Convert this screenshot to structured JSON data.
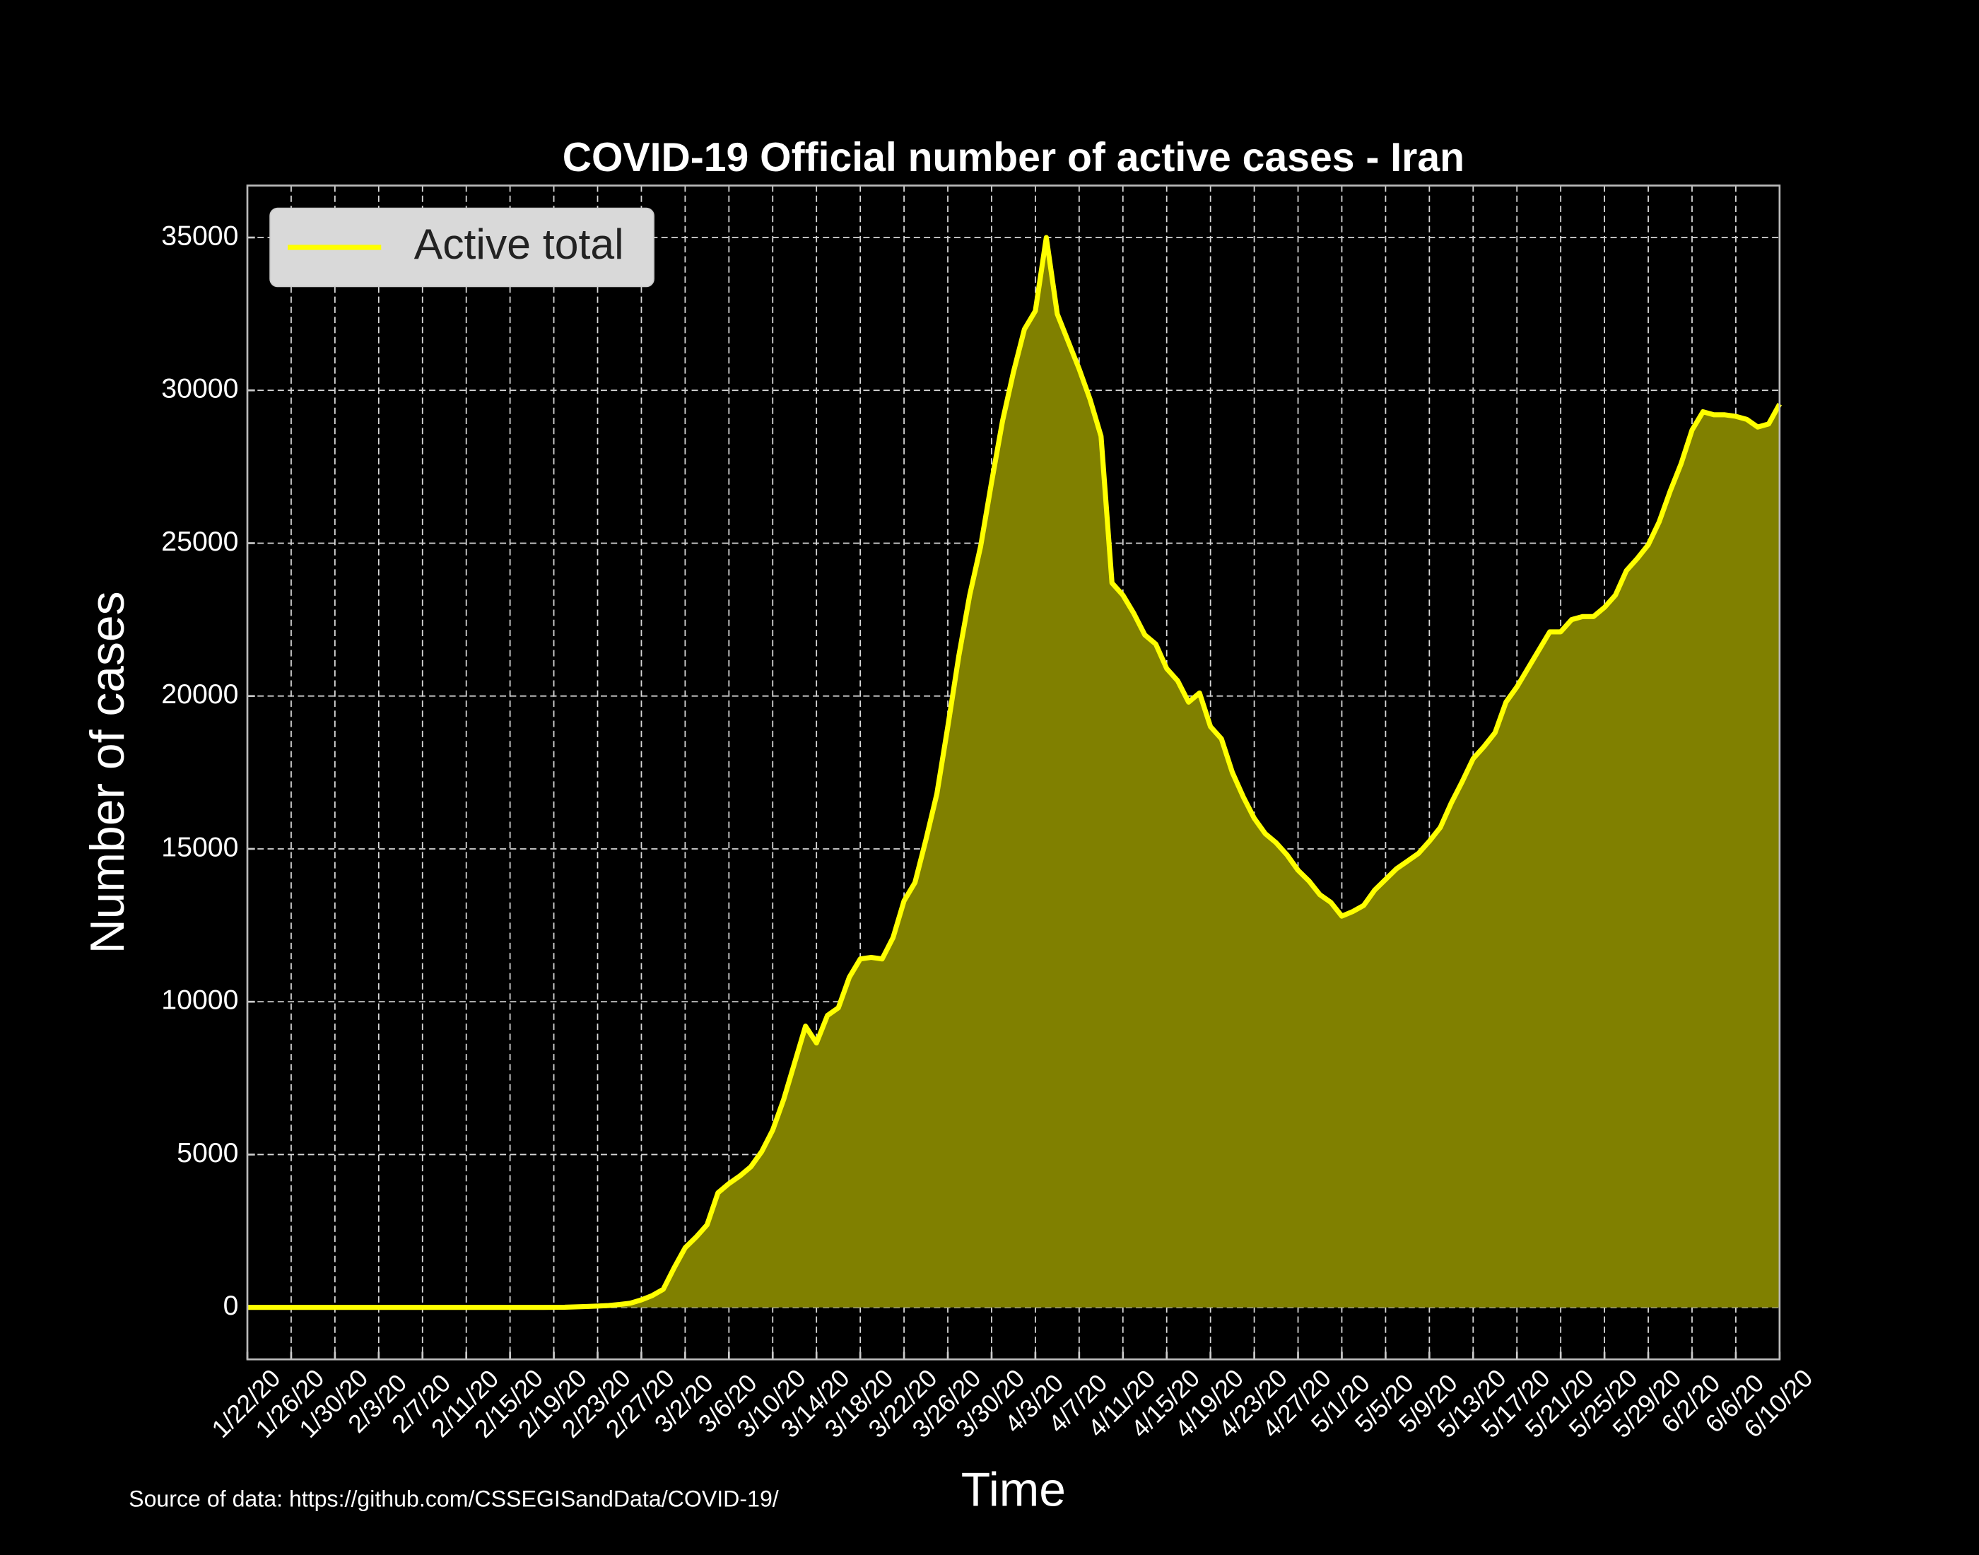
{
  "chart_data": {
    "type": "line",
    "title": "COVID-19 Official number of active cases - Iran",
    "x_label": "Time",
    "y_label": "Number of cases",
    "annotation": "Source of data: https://github.com/CSSEGISandData/COVID-19/",
    "x": [
      "1/22/20",
      "1/23/20",
      "1/24/20",
      "1/25/20",
      "1/26/20",
      "1/27/20",
      "1/28/20",
      "1/29/20",
      "1/30/20",
      "1/31/20",
      "2/1/20",
      "2/2/20",
      "2/3/20",
      "2/4/20",
      "2/5/20",
      "2/6/20",
      "2/7/20",
      "2/8/20",
      "2/9/20",
      "2/10/20",
      "2/11/20",
      "2/12/20",
      "2/13/20",
      "2/14/20",
      "2/15/20",
      "2/16/20",
      "2/17/20",
      "2/18/20",
      "2/19/20",
      "2/20/20",
      "2/21/20",
      "2/22/20",
      "2/23/20",
      "2/24/20",
      "2/25/20",
      "2/26/20",
      "2/27/20",
      "2/28/20",
      "2/29/20",
      "3/1/20",
      "3/2/20",
      "3/3/20",
      "3/4/20",
      "3/5/20",
      "3/6/20",
      "3/7/20",
      "3/8/20",
      "3/9/20",
      "3/10/20",
      "3/11/20",
      "3/12/20",
      "3/13/20",
      "3/14/20",
      "3/15/20",
      "3/16/20",
      "3/17/20",
      "3/18/20",
      "3/19/20",
      "3/20/20",
      "3/21/20",
      "3/22/20",
      "3/23/20",
      "3/24/20",
      "3/25/20",
      "3/26/20",
      "3/27/20",
      "3/28/20",
      "3/29/20",
      "3/30/20",
      "3/31/20",
      "4/1/20",
      "4/2/20",
      "4/3/20",
      "4/4/20",
      "4/5/20",
      "4/6/20",
      "4/7/20",
      "4/8/20",
      "4/9/20",
      "4/10/20",
      "4/11/20",
      "4/12/20",
      "4/13/20",
      "4/14/20",
      "4/15/20",
      "4/16/20",
      "4/17/20",
      "4/18/20",
      "4/19/20",
      "4/20/20",
      "4/21/20",
      "4/22/20",
      "4/23/20",
      "4/24/20",
      "4/25/20",
      "4/26/20",
      "4/27/20",
      "4/28/20",
      "4/29/20",
      "4/30/20",
      "5/1/20",
      "5/2/20",
      "5/3/20",
      "5/4/20",
      "5/5/20",
      "5/6/20",
      "5/7/20",
      "5/8/20",
      "5/9/20",
      "5/10/20",
      "5/11/20",
      "5/12/20",
      "5/13/20",
      "5/14/20",
      "5/15/20",
      "5/16/20",
      "5/17/20",
      "5/18/20",
      "5/19/20",
      "5/20/20",
      "5/21/20",
      "5/22/20",
      "5/23/20",
      "5/24/20",
      "5/25/20",
      "5/26/20",
      "5/27/20",
      "5/28/20",
      "5/29/20",
      "5/30/20",
      "5/31/20",
      "6/1/20",
      "6/2/20",
      "6/3/20",
      "6/4/20",
      "6/5/20",
      "6/6/20",
      "6/7/20",
      "6/8/20",
      "6/9/20",
      "6/10/20"
    ],
    "series": [
      {
        "name": "Active total",
        "color": "#ffff00",
        "fill_color": "#808000",
        "values": [
          0,
          0,
          0,
          0,
          0,
          0,
          0,
          0,
          0,
          0,
          0,
          0,
          0,
          0,
          0,
          0,
          0,
          0,
          0,
          0,
          0,
          0,
          0,
          0,
          0,
          0,
          0,
          0,
          2,
          5,
          18,
          28,
          43,
          61,
          95,
          139,
          245,
          388,
          593,
          1300,
          1950,
          2300,
          2700,
          3750,
          4050,
          4300,
          4600,
          5100,
          5800,
          6800,
          8000,
          9200,
          8650,
          9550,
          9800,
          10800,
          11400,
          11450,
          11400,
          12100,
          13300,
          13900,
          15300,
          16800,
          19000,
          21300,
          23300,
          24900,
          27000,
          29000,
          30600,
          32000,
          32600,
          35000,
          32500,
          31600,
          30700,
          29700,
          28500,
          23700,
          23300,
          22700,
          22000,
          21700,
          20900,
          20500,
          19800,
          20100,
          19000,
          18600,
          17500,
          16700,
          16000,
          15500,
          15200,
          14800,
          14300,
          13950,
          13500,
          13250,
          12800,
          12950,
          13150,
          13650,
          14000,
          14350,
          14600,
          14850,
          15250,
          15700,
          16500,
          17200,
          17950,
          18350,
          18800,
          19800,
          20300,
          20900,
          21500,
          22100,
          22100,
          22500,
          22600,
          22600,
          22900,
          23300,
          24100,
          24500,
          24950,
          25700,
          26700,
          27600,
          28700,
          29300,
          29200,
          29200,
          29150,
          29050,
          28800,
          28900,
          29550
        ]
      }
    ],
    "xticks": [
      "1/22/20",
      "1/26/20",
      "1/30/20",
      "2/3/20",
      "2/7/20",
      "2/11/20",
      "2/15/20",
      "2/19/20",
      "2/23/20",
      "2/27/20",
      "3/2/20",
      "3/6/20",
      "3/10/20",
      "3/14/20",
      "3/18/20",
      "3/22/20",
      "3/26/20",
      "3/30/20",
      "4/3/20",
      "4/7/20",
      "4/11/20",
      "4/15/20",
      "4/19/20",
      "4/23/20",
      "4/27/20",
      "5/1/20",
      "5/5/20",
      "5/9/20",
      "5/13/20",
      "5/17/20",
      "5/21/20",
      "5/25/20",
      "5/29/20",
      "6/2/20",
      "6/6/20",
      "6/10/20"
    ],
    "ylim": [
      -1700,
      36700
    ],
    "yticks": [
      0,
      5000,
      10000,
      15000,
      20000,
      25000,
      30000,
      35000
    ],
    "grid": true,
    "legend": "upper left"
  }
}
